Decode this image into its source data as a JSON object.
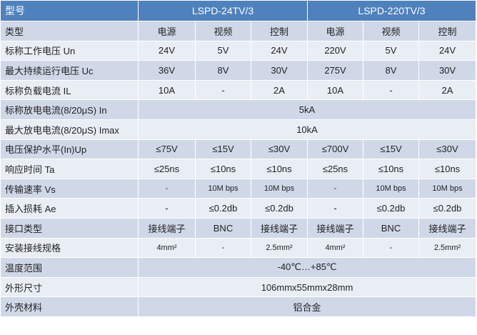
{
  "header": {
    "label": "型号",
    "models": [
      "LSPD-24TV/3",
      "LSPD-220TV/3"
    ]
  },
  "rows": [
    {
      "label": "类型",
      "cells": [
        "电源",
        "视频",
        "控制",
        "电源",
        "视频",
        "控制"
      ]
    },
    {
      "label": "标称工作电压 Un",
      "cells": [
        "24V",
        "5V",
        "24V",
        "220V",
        "5V",
        "24V"
      ]
    },
    {
      "label": "最大持续运行电压 Uc",
      "cells": [
        "36V",
        "8V",
        "30V",
        "275V",
        "8V",
        "30V"
      ]
    },
    {
      "label": "标称负载电流 IL",
      "cells": [
        "10A",
        "-",
        "2A",
        "10A",
        "-",
        "2A"
      ]
    },
    {
      "label": "标称放电电流(8/20μS) In",
      "span": "5kA"
    },
    {
      "label": "最大放电电流(8/20μS) Imax",
      "span": "10kA"
    },
    {
      "label": "电压保护水平(In)Up",
      "cells": [
        "≤75V",
        "≤15V",
        "≤30V",
        "≤700V",
        "≤15V",
        "≤30V"
      ]
    },
    {
      "label": "响应时间 Ta",
      "cells": [
        "≤25ns",
        "≤10ns",
        "≤10ns",
        "≤25ns",
        "≤10ns",
        "≤10ns"
      ]
    },
    {
      "label": "传输速率 Vs",
      "cells": [
        "-",
        "10M bps",
        "10M bps",
        "-",
        "10M bps",
        "10M bps"
      ],
      "small": true
    },
    {
      "label": "插入损耗 Ae",
      "cells": [
        "-",
        "≤0.2db",
        "≤0.2db",
        "-",
        "≤0.2db",
        "≤0.2db"
      ]
    },
    {
      "label": "接口类型",
      "cells": [
        "接线端子",
        "BNC",
        "接线端子",
        "接线端子",
        "BNC",
        "接线端子"
      ]
    },
    {
      "label": "安装接线规格",
      "cells": [
        "4mm²",
        "-",
        "2.5mm²",
        "4mm²",
        "-",
        "2.5mm²"
      ],
      "small": true
    },
    {
      "label": "温度范围",
      "span": "-40℃…+85℃"
    },
    {
      "label": "外形尺寸",
      "span": "106mmx55mmx28mm"
    },
    {
      "label": "外壳材料",
      "span": "铝合金"
    }
  ],
  "colors": {
    "header": "#4f81bd",
    "row_dark": "#d0d8e8",
    "row_light": "#e9edf4"
  }
}
